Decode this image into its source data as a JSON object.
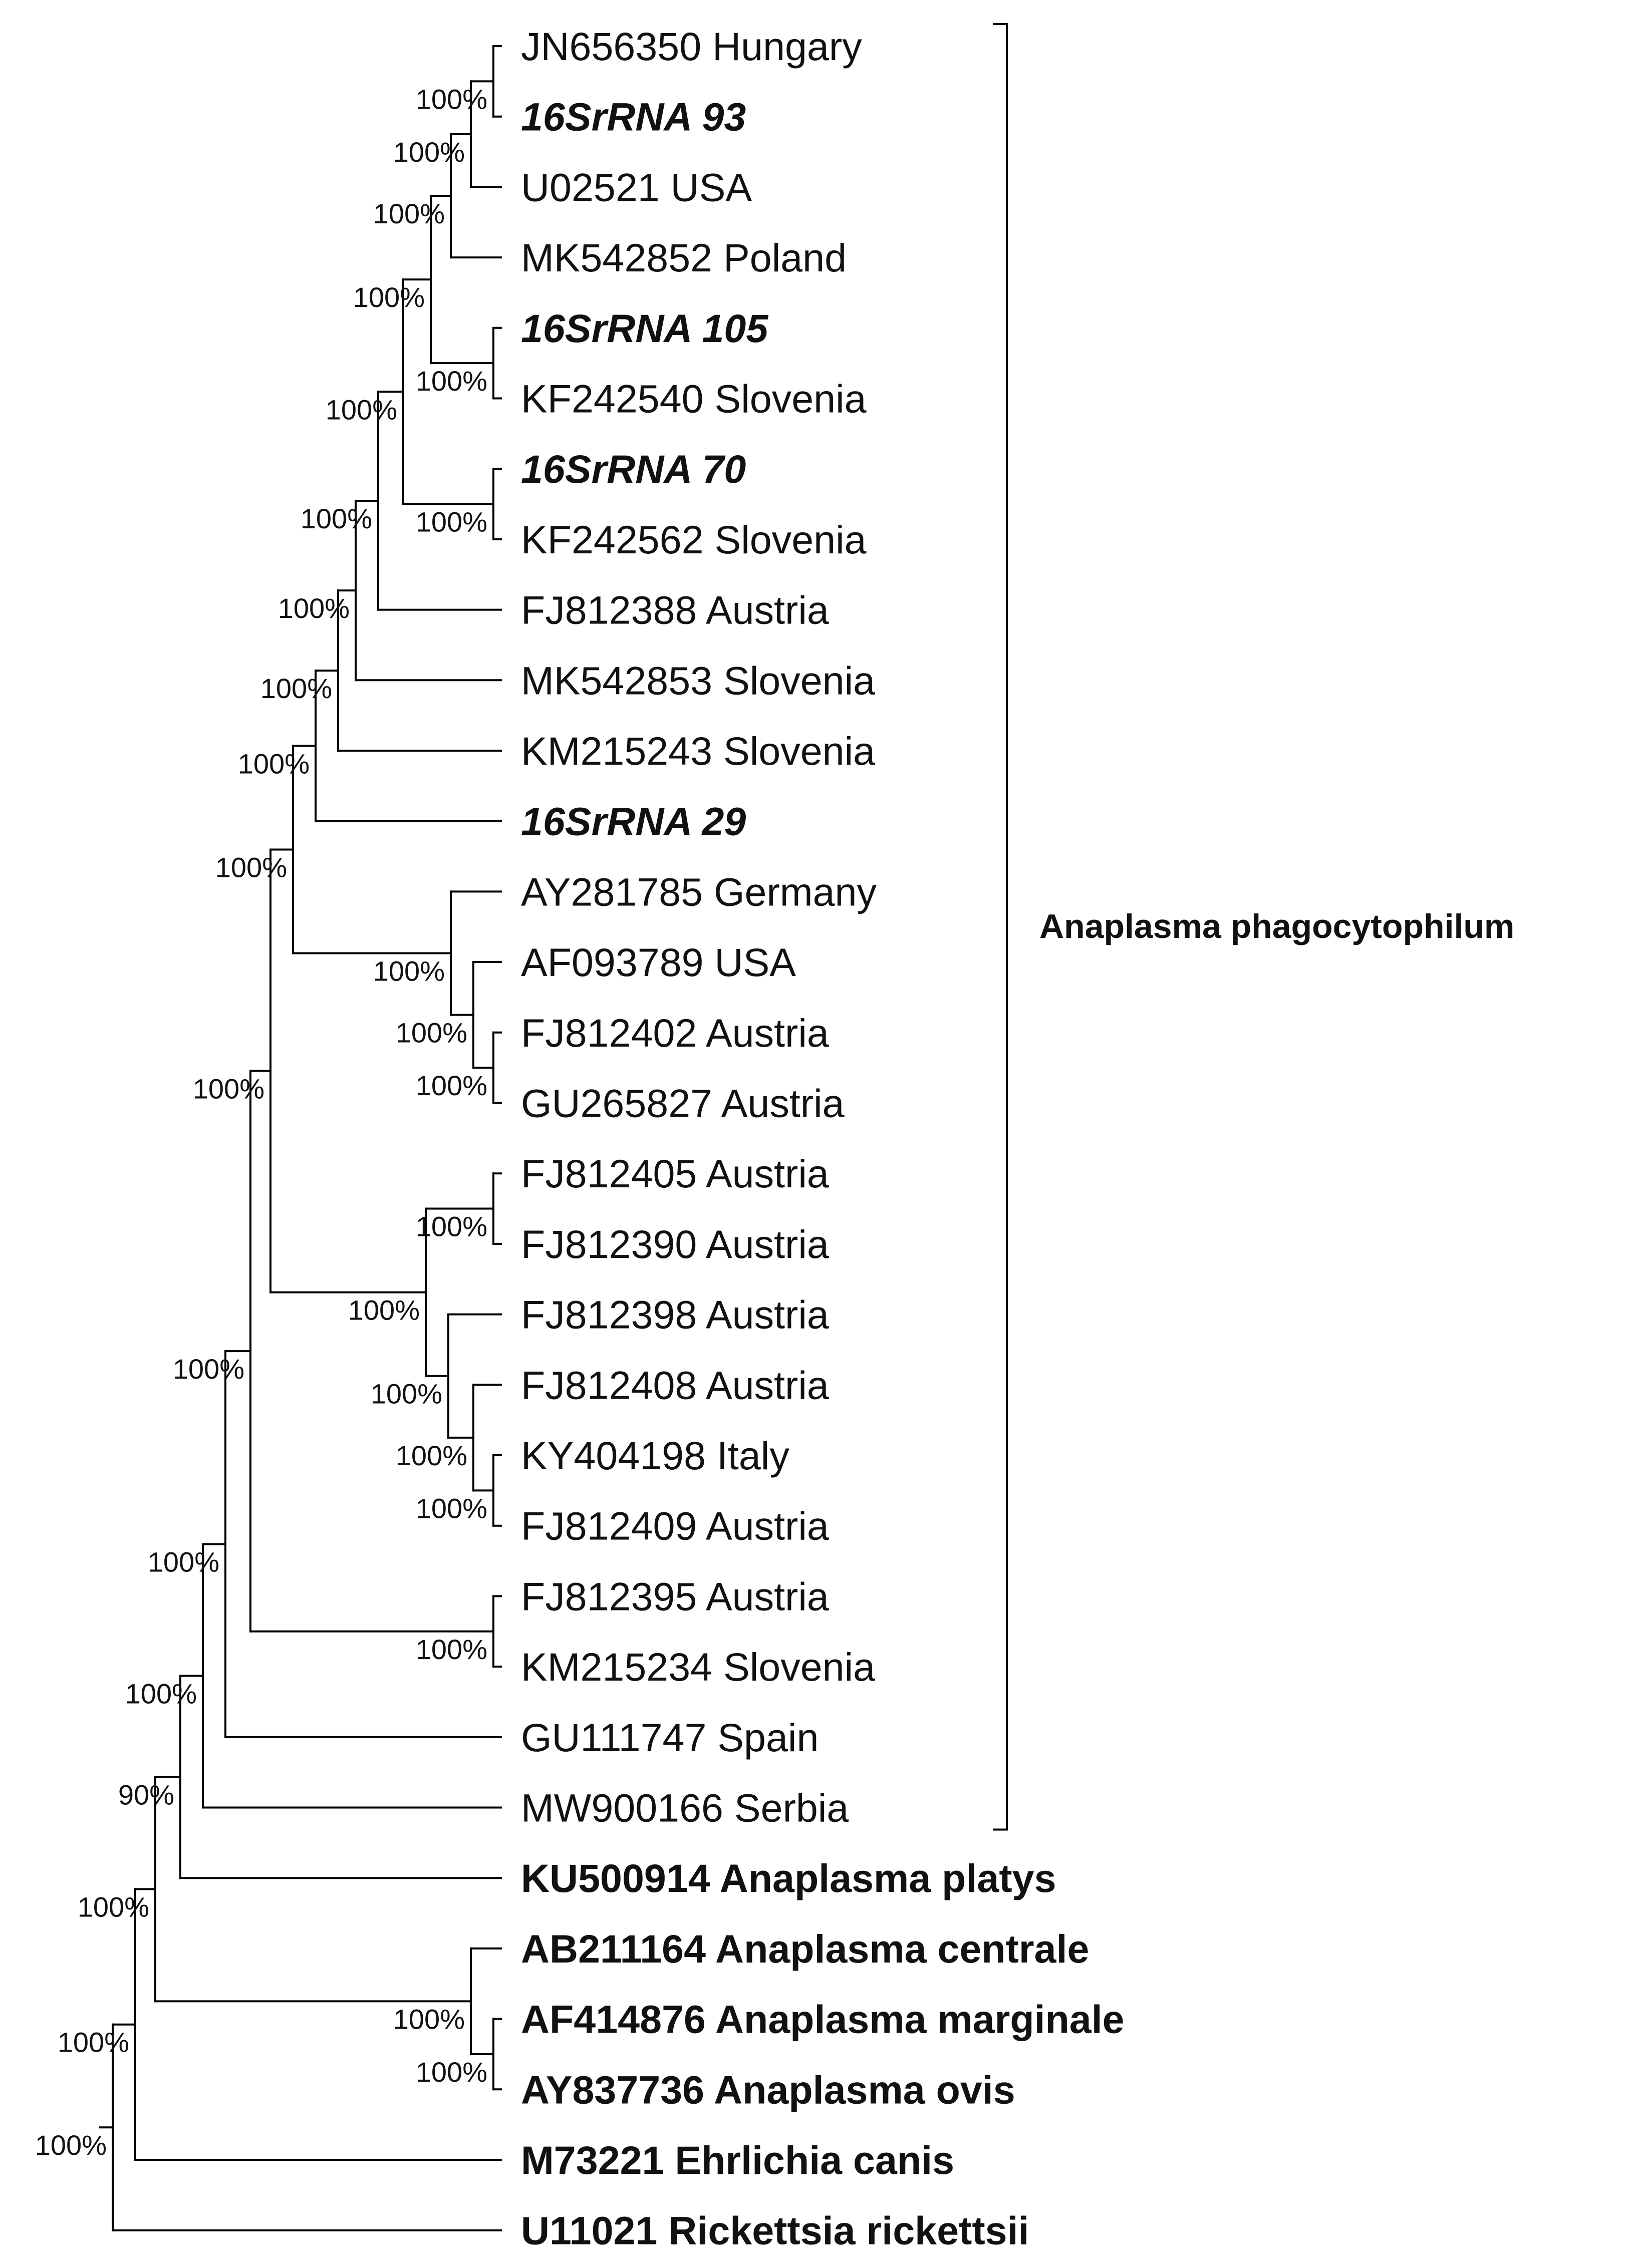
{
  "tree": {
    "leaves": [
      {
        "label": "JN656350 Hungary",
        "style": "normal"
      },
      {
        "label": "16SrRNA 93",
        "style": "boldital"
      },
      {
        "label": "U02521 USA",
        "style": "normal"
      },
      {
        "label": "MK542852 Poland",
        "style": "normal"
      },
      {
        "label": "16SrRNA 105",
        "style": "boldital"
      },
      {
        "label": "KF242540 Slovenia",
        "style": "normal"
      },
      {
        "label": "16SrRNA 70",
        "style": "boldital"
      },
      {
        "label": "KF242562 Slovenia",
        "style": "normal"
      },
      {
        "label": "FJ812388 Austria",
        "style": "normal"
      },
      {
        "label": "MK542853 Slovenia",
        "style": "normal"
      },
      {
        "label": "KM215243 Slovenia",
        "style": "normal"
      },
      {
        "label": "16SrRNA 29",
        "style": "boldital"
      },
      {
        "label": "AY281785 Germany",
        "style": "normal"
      },
      {
        "label": "AF093789 USA",
        "style": "normal"
      },
      {
        "label": "FJ812402 Austria",
        "style": "normal"
      },
      {
        "label": "GU265827 Austria",
        "style": "normal"
      },
      {
        "label": "FJ812405 Austria",
        "style": "normal"
      },
      {
        "label": "FJ812390 Austria",
        "style": "normal"
      },
      {
        "label": "FJ812398 Austria",
        "style": "normal"
      },
      {
        "label": "FJ812408 Austria",
        "style": "normal"
      },
      {
        "label": "KY404198 Italy",
        "style": "normal"
      },
      {
        "label": "FJ812409 Austria",
        "style": "normal"
      },
      {
        "label": "FJ812395 Austria",
        "style": "normal"
      },
      {
        "label": "KM215234 Slovenia",
        "style": "normal"
      },
      {
        "label": "GU111747 Spain",
        "style": "normal"
      },
      {
        "label": "MW900166 Serbia",
        "style": "normal"
      },
      {
        "label": "KU500914 Anaplasma platys",
        "style": "bold"
      },
      {
        "label": "AB211164 Anaplasma centrale",
        "style": "bold"
      },
      {
        "label": "AF414876 Anaplasma marginale",
        "style": "bold"
      },
      {
        "label": "AY837736 Anaplasma ovis",
        "style": "bold"
      },
      {
        "label": "M73221 Ehrlichia canis",
        "style": "bold"
      },
      {
        "label": "U11021 Rickettsia rickettsii",
        "style": "bold"
      }
    ],
    "nodes": [
      {
        "id": "n1",
        "children": [
          0,
          1
        ],
        "support": "100%"
      },
      {
        "id": "n2",
        "children": [
          "n1",
          2
        ],
        "support": "100%"
      },
      {
        "id": "n3",
        "children": [
          "n2",
          3
        ],
        "support": "100%"
      },
      {
        "id": "n4",
        "children": [
          4,
          5
        ],
        "support": "100%"
      },
      {
        "id": "n5",
        "children": [
          "n3",
          "n4"
        ],
        "support": "100%"
      },
      {
        "id": "n6",
        "children": [
          6,
          7
        ],
        "support": "100%"
      },
      {
        "id": "n7",
        "children": [
          "n5",
          "n6"
        ],
        "support": "100%"
      },
      {
        "id": "n8",
        "children": [
          "n7",
          8
        ],
        "support": "100%"
      },
      {
        "id": "n9",
        "children": [
          "n8",
          9
        ],
        "support": "100%"
      },
      {
        "id": "n10",
        "children": [
          "n9",
          10
        ],
        "support": "100%"
      },
      {
        "id": "n11",
        "children": [
          "n10",
          11
        ],
        "support": "100%"
      },
      {
        "id": "n12",
        "children": [
          14,
          15
        ],
        "support": "100%"
      },
      {
        "id": "n13",
        "children": [
          13,
          "n12"
        ],
        "support": "100%"
      },
      {
        "id": "n14",
        "children": [
          12,
          "n13"
        ],
        "support": "100%"
      },
      {
        "id": "n15",
        "children": [
          "n11",
          "n14"
        ],
        "support": "100%"
      },
      {
        "id": "n16",
        "children": [
          16,
          17
        ],
        "support": "100%"
      },
      {
        "id": "n17",
        "children": [
          20,
          21
        ],
        "support": "100%"
      },
      {
        "id": "n18",
        "children": [
          19,
          "n17"
        ],
        "support": "100%"
      },
      {
        "id": "n19",
        "children": [
          18,
          "n18"
        ],
        "support": "100%"
      },
      {
        "id": "n20",
        "children": [
          "n16",
          "n19"
        ],
        "support": "100%"
      },
      {
        "id": "n21",
        "children": [
          "n15",
          "n20"
        ],
        "support": "100%"
      },
      {
        "id": "n22",
        "children": [
          22,
          23
        ],
        "support": "100%"
      },
      {
        "id": "n23",
        "children": [
          "n21",
          "n22"
        ],
        "support": "100%"
      },
      {
        "id": "n24",
        "children": [
          "n23",
          24
        ],
        "support": "100%"
      },
      {
        "id": "n25",
        "children": [
          "n24",
          25
        ],
        "support": "100%"
      },
      {
        "id": "n26",
        "children": [
          "n25",
          26
        ],
        "support": "90%"
      },
      {
        "id": "n27",
        "children": [
          28,
          29
        ],
        "support": "100%"
      },
      {
        "id": "n28",
        "children": [
          27,
          "n27"
        ],
        "support": "100%"
      },
      {
        "id": "n29",
        "children": [
          "n26",
          "n28"
        ],
        "support": "100%"
      },
      {
        "id": "n30",
        "children": [
          "n29",
          30
        ],
        "support": "100%"
      },
      {
        "id": "n31",
        "children": [
          "n30",
          31
        ],
        "support": "100%"
      }
    ],
    "clade": {
      "label": "Anaplasma phagocytophilum",
      "from_leaf": 0,
      "to_leaf": 25
    }
  }
}
